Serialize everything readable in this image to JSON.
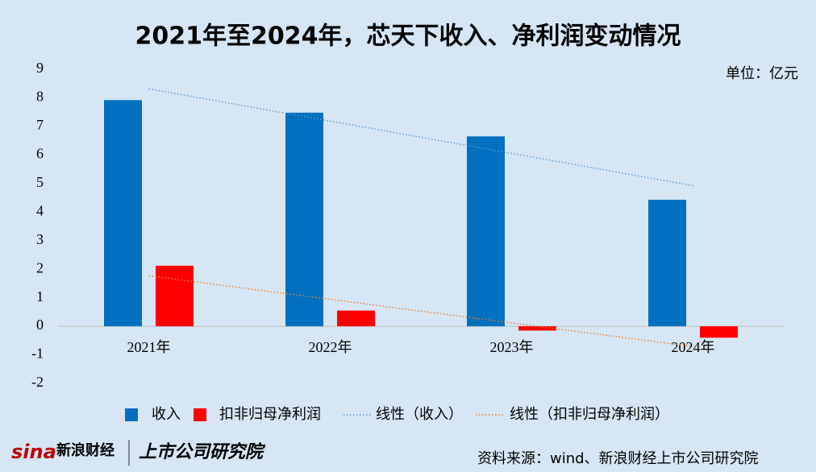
{
  "chart_data": {
    "type": "bar",
    "title": "2021年至2024年，芯天下收入、净利润变动情况",
    "unit": "单位：亿元",
    "categories": [
      "2021年",
      "2022年",
      "2023年",
      "2024年"
    ],
    "series": [
      {
        "name": "收入",
        "color": "#0070c0",
        "values": [
          7.92,
          7.48,
          6.65,
          4.43
        ],
        "trendline": {
          "name": "线性（收入）",
          "color": "#5b9bd5"
        }
      },
      {
        "name": "扣非归母净利润",
        "color": "#ff0000",
        "values": [
          2.12,
          0.55,
          -0.15,
          -0.4
        ],
        "trendline": {
          "name": "线性（扣非归母净利润）",
          "color": "#ed7d31"
        }
      }
    ],
    "ylim": [
      -2,
      9
    ],
    "yticks": [
      -2,
      -1,
      0,
      1,
      2,
      3,
      4,
      5,
      6,
      7,
      8,
      9
    ],
    "source": "资料来源：wind、新浪财经上市公司研究院",
    "logo": [
      "sina",
      "新浪财经",
      "上市公司研究院"
    ]
  }
}
